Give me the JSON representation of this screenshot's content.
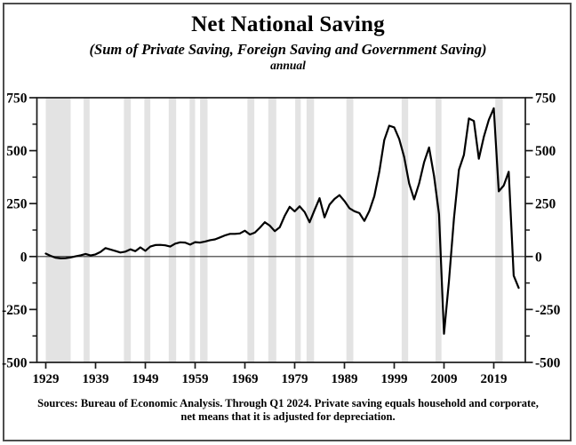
{
  "header": {
    "title": "Net National Saving",
    "subtitle": "(Sum of Private Saving, Foreign Saving and Government Saving)",
    "frequency": "annual"
  },
  "footer": {
    "line1": "Sources: Bureau of Economic Analysis. Through Q1 2024. Private saving equals household and corporate,",
    "line2": "net means that it is adjusted for depreciation."
  },
  "chart_data": {
    "type": "line",
    "title": "Net National Saving",
    "xlabel": "",
    "ylabel": "",
    "x_start": 1929,
    "x_end": 2024,
    "ylim": [
      -500,
      750
    ],
    "y_major_ticks": [
      750,
      500,
      250,
      0,
      -250,
      -500
    ],
    "y_minor_ticks": [
      625,
      375,
      125,
      -125,
      -375
    ],
    "x_ticks": [
      1929,
      1939,
      1949,
      1959,
      1969,
      1979,
      1989,
      1999,
      2009,
      2019
    ],
    "grid": false,
    "legend": "none",
    "line_color": "#000000",
    "recession_band_color": "#e3e3e3",
    "zero_line": 0,
    "recession_bands": [
      [
        1929.0,
        1934.0
      ],
      [
        1936.6,
        1937.8
      ],
      [
        1944.7,
        1946.1
      ],
      [
        1948.8,
        1950.0
      ],
      [
        1953.7,
        1955.2
      ],
      [
        1957.9,
        1959.0
      ],
      [
        1960.0,
        1961.5
      ],
      [
        1969.5,
        1970.9
      ],
      [
        1973.7,
        1975.3
      ],
      [
        1979.1,
        1980.2
      ],
      [
        1981.4,
        1982.9
      ],
      [
        1989.4,
        1990.8
      ],
      [
        2000.5,
        2001.8
      ],
      [
        2007.3,
        2008.5
      ],
      [
        2019.3,
        2020.8
      ]
    ],
    "series": [
      {
        "name": "Net National Saving (annual, $ billions)",
        "values": [
          14,
          3,
          -6,
          -9,
          -8,
          -4,
          1,
          6,
          12,
          5,
          10,
          22,
          40,
          33,
          26,
          19,
          23,
          34,
          25,
          43,
          27,
          47,
          54,
          55,
          53,
          47,
          61,
          67,
          66,
          56,
          68,
          66,
          71,
          77,
          81,
          90,
          100,
          107,
          107,
          109,
          122,
          104,
          113,
          136,
          162,
          146,
          120,
          138,
          192,
          235,
          213,
          237,
          210,
          162,
          220,
          275,
          185,
          245,
          272,
          290,
          262,
          228,
          214,
          205,
          168,
          215,
          285,
          400,
          550,
          618,
          610,
          555,
          470,
          345,
          270,
          345,
          445,
          515,
          380,
          200,
          -365,
          -115,
          180,
          410,
          480,
          652,
          640,
          462,
          565,
          645,
          700,
          308,
          335,
          400,
          -90,
          -148
        ]
      }
    ]
  }
}
